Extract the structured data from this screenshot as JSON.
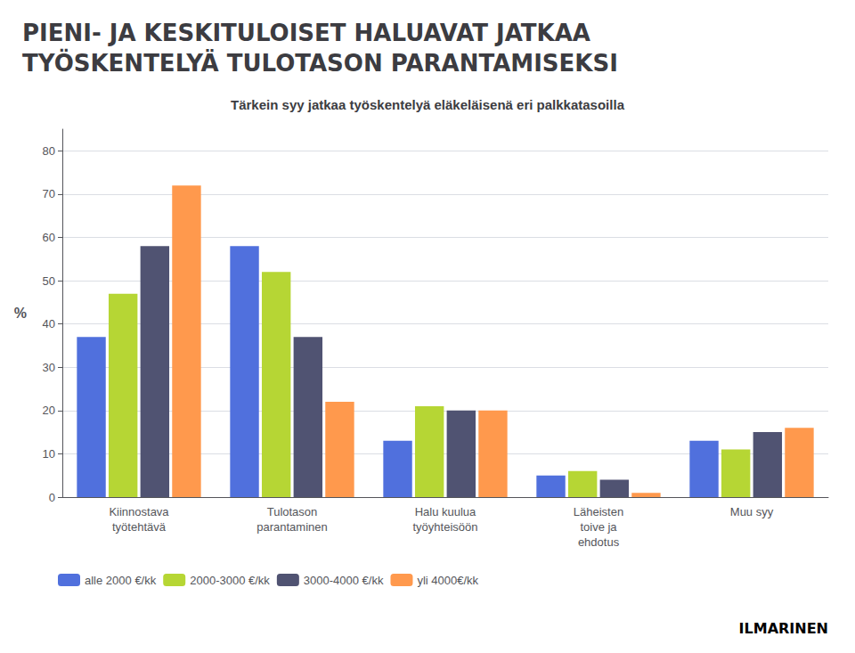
{
  "chart_data": {
    "type": "bar",
    "title": "PIENI- JA KESKITULOISET HALUAVAT JATKAA\nTYÖSKENTELYÄ TULOTASON PARANTAMISEKSI",
    "subtitle": "Tärkein syy jatkaa työskentelyä eläkeläisenä eri palkkatasoilla",
    "categories": [
      "Kiinnostava\ntyötehtävä",
      "Tulotason\nparantaminen",
      "Halu kuulua\ntyöyhteisöön",
      "Läheisten\ntoive ja\nehdotus",
      "Muu syy"
    ],
    "series": [
      {
        "name": "alle 2000 €/kk",
        "values": [
          37,
          58,
          13,
          5,
          13
        ]
      },
      {
        "name": "2000-3000 €/kk",
        "values": [
          47,
          52,
          21,
          6,
          11
        ]
      },
      {
        "name": "3000-4000 €/kk",
        "values": [
          58,
          37,
          20,
          4,
          15
        ]
      },
      {
        "name": "yli 4000€/kk",
        "values": [
          72,
          22,
          20,
          1,
          16
        ]
      }
    ],
    "ylabel": "%",
    "ylim": [
      0,
      85
    ],
    "yticks": [
      0,
      10,
      20,
      30,
      40,
      50,
      60,
      70,
      80
    ],
    "grid": true,
    "legend": "lower left",
    "annotations": [
      "ILMARINEN"
    ]
  }
}
